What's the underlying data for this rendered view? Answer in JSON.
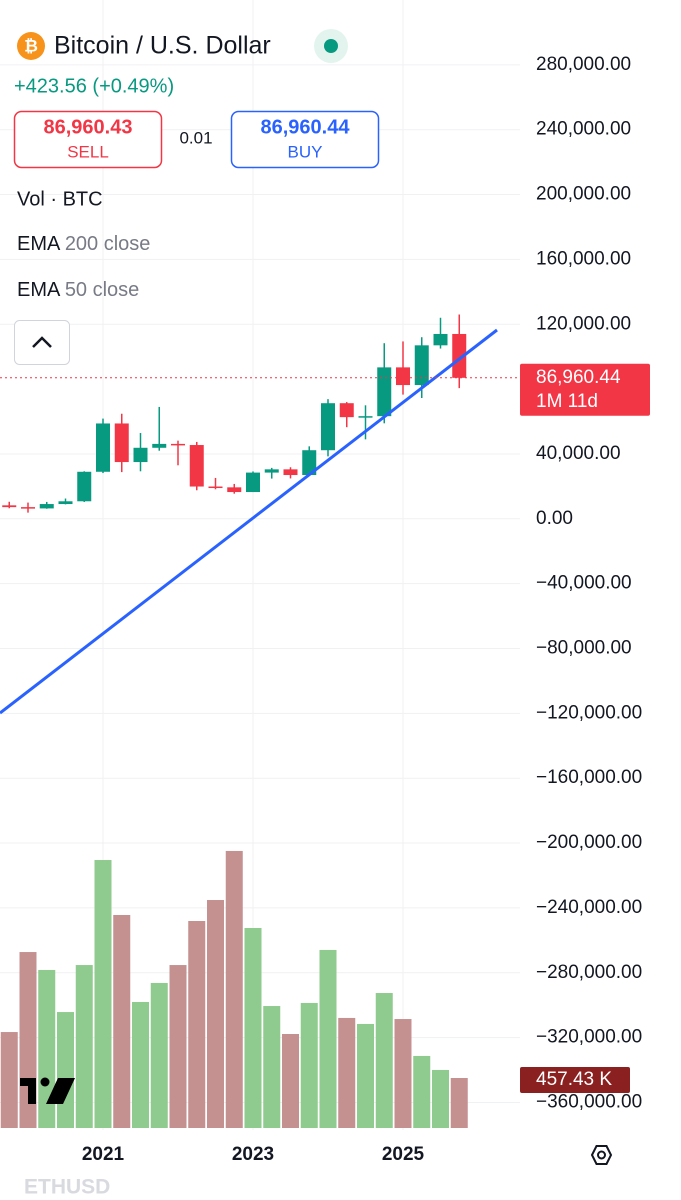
{
  "header": {
    "symbol": "Bitcoin / U.S. Dollar",
    "change": "+423.56 (+0.49%)",
    "sell": {
      "price": "86,960.43",
      "label": "SELL"
    },
    "spread": "0.01",
    "buy": {
      "price": "86,960.44",
      "label": "BUY"
    },
    "legend": "Vol · BTC",
    "indicators": [
      {
        "name": "EMA",
        "params": "200 close"
      },
      {
        "name": "EMA",
        "params": "50 close"
      }
    ]
  },
  "chart_data": {
    "type": "candlestick",
    "categories": [
      null,
      null,
      null,
      null,
      null,
      "2021",
      null,
      null,
      null,
      null,
      null,
      null,
      null,
      "2023",
      null,
      null,
      null,
      null,
      null,
      null,
      null,
      "2025",
      null,
      null,
      null
    ],
    "open": [
      8300,
      7200,
      6400,
      9100,
      10800,
      29000,
      58800,
      35000,
      43800,
      46200,
      45500,
      19900,
      19400,
      16500,
      28500,
      30500,
      27000,
      42300,
      71300,
      62700,
      63300,
      93400,
      82500,
      107000,
      114000
    ],
    "high": [
      10500,
      10000,
      10400,
      12500,
      29300,
      61800,
      64800,
      52900,
      69000,
      48200,
      47400,
      25200,
      21500,
      29200,
      31400,
      31800,
      44700,
      73800,
      72000,
      70000,
      108300,
      109400,
      112000,
      124000,
      126000
    ],
    "low": [
      6500,
      3800,
      6200,
      8900,
      10400,
      28200,
      28800,
      29300,
      42000,
      33000,
      17600,
      18200,
      15500,
      16500,
      24800,
      24900,
      26800,
      38500,
      56500,
      49000,
      58900,
      76600,
      74500,
      105000,
      80600
    ],
    "close": [
      7200,
      6400,
      9100,
      10800,
      29000,
      58800,
      35000,
      43800,
      46200,
      45500,
      19900,
      19400,
      16500,
      28500,
      30500,
      27000,
      42300,
      71300,
      62700,
      63300,
      93400,
      82500,
      107000,
      114000,
      86960.44
    ],
    "close_labels": [
      null,
      null,
      null,
      null,
      null,
      null,
      null,
      null,
      null,
      null,
      null,
      null,
      null,
      null,
      null,
      null,
      null,
      null,
      null,
      null,
      null,
      null,
      null,
      null,
      "86,960.44"
    ],
    "countdown": "1M 11d",
    "volume": {
      "values": [
        878,
        1610,
        1446,
        1061,
        1491,
        2452,
        1949,
        1153,
        1327,
        1491,
        1894,
        2086,
        2535,
        1830,
        1116,
        860,
        1144,
        1629,
        1007,
        952,
        1235,
        997,
        659,
        531,
        457.43
      ],
      "value_labels": [
        null,
        null,
        null,
        null,
        null,
        null,
        null,
        null,
        null,
        null,
        null,
        null,
        null,
        null,
        null,
        null,
        null,
        null,
        null,
        null,
        null,
        null,
        null,
        null,
        "457.43 K"
      ],
      "up_color": "#8fca8e",
      "down_color": "#c49090"
    },
    "up_color": "#089981",
    "down_color": "#f23645",
    "ylim": [
      -377000,
      320000
    ],
    "yticks": [
      {
        "value": 280000,
        "label": "280,000.00"
      },
      {
        "value": 240000,
        "label": "240,000.00"
      },
      {
        "value": 200000,
        "label": "200,000.00"
      },
      {
        "value": 160000,
        "label": "160,000.00"
      },
      {
        "value": 120000,
        "label": "120,000.00"
      },
      {
        "value": 40000,
        "label": "40,000.00"
      },
      {
        "value": 0,
        "label": "0.00"
      },
      {
        "value": -40000,
        "label": "−40,000.00"
      },
      {
        "value": -80000,
        "label": "−80,000.00"
      },
      {
        "value": -120000,
        "label": "−120,000.00"
      },
      {
        "value": -160000,
        "label": "−160,000.00"
      },
      {
        "value": -200000,
        "label": "−200,000.00"
      },
      {
        "value": -240000,
        "label": "−240,000.00"
      },
      {
        "value": -280000,
        "label": "−280,000.00"
      },
      {
        "value": -320000,
        "label": "−320,000.00"
      },
      {
        "value": -360000,
        "label": "−360,000.00"
      }
    ],
    "grid": true
  },
  "footer": {
    "symbol": "ETHUSD"
  }
}
